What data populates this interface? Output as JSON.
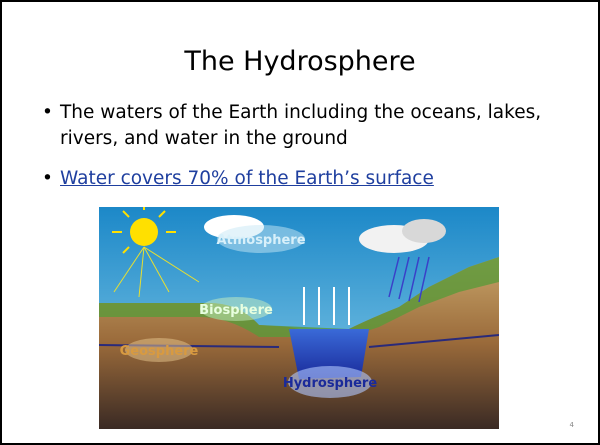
{
  "slide": {
    "title": "The Hydrosphere",
    "bullets": [
      "The waters of the Earth including the oceans, lakes, rivers, and water in the ground",
      "Water covers 70% of the Earth’s surface"
    ],
    "figure": {
      "labels": [
        "Atmosphere",
        "Biosphere",
        "Geosphere",
        "Hydrosphere"
      ]
    },
    "page_number": "4"
  }
}
